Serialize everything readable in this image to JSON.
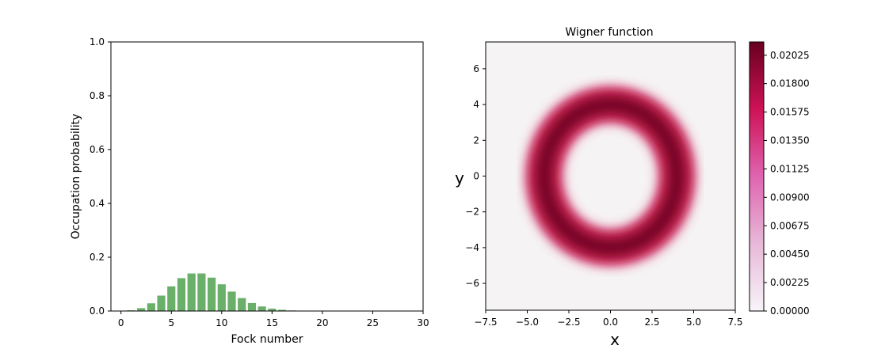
{
  "chart_data": [
    {
      "type": "bar",
      "xlabel": "Fock number",
      "ylabel": "Occupation probability",
      "xlim": [
        -1,
        30
      ],
      "ylim": [
        0,
        1.0
      ],
      "xticks": [
        "0",
        "5",
        "10",
        "15",
        "20",
        "25",
        "30"
      ],
      "yticks": [
        "0.0",
        "0.2",
        "0.4",
        "0.6",
        "0.8",
        "1.0"
      ],
      "bar_color": "#6aaf6a",
      "x": [
        0,
        1,
        2,
        3,
        4,
        5,
        6,
        7,
        8,
        9,
        10,
        11,
        12,
        13,
        14,
        15,
        16,
        17,
        18,
        19,
        20,
        21,
        22,
        23,
        24,
        25,
        26,
        27,
        28,
        29
      ],
      "values": [
        0.0003,
        0.0027,
        0.0107,
        0.0286,
        0.0573,
        0.0916,
        0.1221,
        0.1396,
        0.1396,
        0.1241,
        0.0993,
        0.0722,
        0.0481,
        0.0296,
        0.0169,
        0.009,
        0.0045,
        0.0021,
        0.0009,
        0.0004,
        0.0002,
        0.0001,
        0,
        0,
        0,
        0,
        0,
        0,
        0,
        0
      ]
    },
    {
      "type": "heatmap",
      "title": "Wigner function",
      "xlabel": "x",
      "ylabel": "y",
      "xlim": [
        -7.5,
        7.5
      ],
      "ylim": [
        -7.5,
        7.5
      ],
      "xticks": [
        "−7.5",
        "−5.0",
        "−2.5",
        "0.0",
        "2.5",
        "5.0",
        "7.5"
      ],
      "yticks": [
        "−6",
        "−4",
        "−2",
        "0",
        "2",
        "4",
        "6"
      ],
      "ring_center": [
        0,
        0
      ],
      "ring_radius": 4.0,
      "ring_width": 0.7,
      "colorbar": {
        "min": 0.0,
        "max": 0.0213,
        "ticks": [
          "0.00000",
          "0.00225",
          "0.00450",
          "0.00675",
          "0.00900",
          "0.01125",
          "0.01350",
          "0.01575",
          "0.01800",
          "0.02025"
        ],
        "colormap": "PuRd",
        "color_low": "#f7f4f9",
        "color_high": "#67001f"
      }
    }
  ]
}
